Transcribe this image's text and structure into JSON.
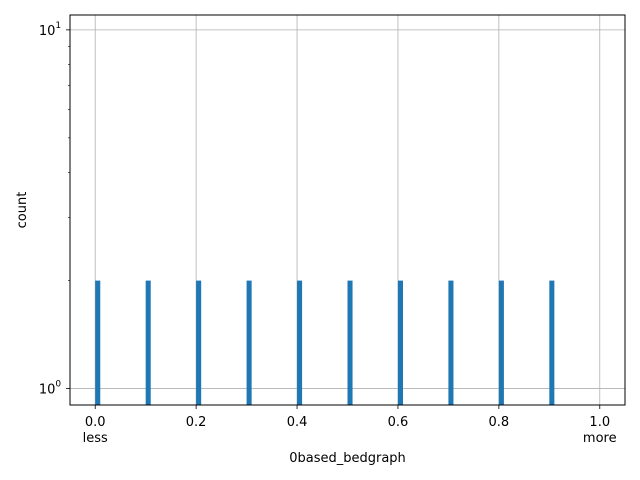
{
  "chart_data": {
    "type": "bar",
    "title": "",
    "xlabel": "0based_bedgraph",
    "ylabel": "count",
    "y_scale": "log",
    "xlim": [
      -0.05,
      1.05
    ],
    "ylim": [
      0.9,
      11
    ],
    "grid": true,
    "bar_color": "#1f77b4",
    "x": [
      0.0,
      0.1,
      0.2,
      0.3,
      0.4,
      0.5,
      0.6,
      0.7,
      0.8,
      0.9
    ],
    "values": [
      2,
      2,
      2,
      2,
      2,
      2,
      2,
      2,
      2,
      2
    ],
    "x_ticks": [
      {
        "value": 0.0,
        "label": "0.0"
      },
      {
        "value": 0.2,
        "label": "0.2"
      },
      {
        "value": 0.4,
        "label": "0.4"
      },
      {
        "value": 0.6,
        "label": "0.6"
      },
      {
        "value": 0.8,
        "label": "0.8"
      },
      {
        "value": 1.0,
        "label": "1.0"
      }
    ],
    "x_annotations": [
      {
        "value": 0.0,
        "label": "less"
      },
      {
        "value": 1.0,
        "label": "more"
      }
    ],
    "y_ticks": [
      {
        "value": 1,
        "base": "10",
        "exp": "0"
      },
      {
        "value": 10,
        "base": "10",
        "exp": "1"
      }
    ]
  }
}
